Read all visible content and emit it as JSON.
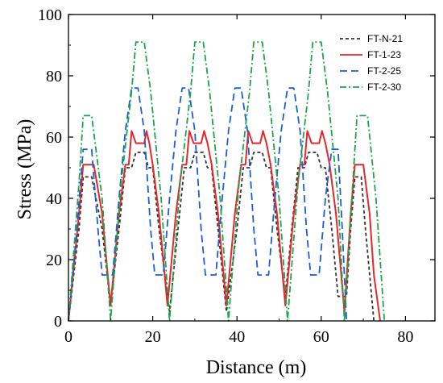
{
  "chart_data": {
    "type": "line",
    "xlabel": "Distance (m)",
    "ylabel": "Stress (MPa)",
    "xlim": [
      0,
      87
    ],
    "ylim": [
      0,
      100
    ],
    "xticks": [
      0,
      20,
      40,
      60,
      80
    ],
    "yticks": [
      0,
      20,
      40,
      60,
      80,
      100
    ],
    "legend_position": "top-right",
    "grid": false,
    "series": [
      {
        "name": "FT-N-21",
        "color": "#333333",
        "dash": "4,3",
        "points": [
          [
            0,
            0
          ],
          [
            2.5,
            30
          ],
          [
            3.5,
            47
          ],
          [
            5.5,
            47
          ],
          [
            8,
            30
          ],
          [
            10,
            5
          ],
          [
            12,
            30
          ],
          [
            13.5,
            50
          ],
          [
            15,
            50
          ],
          [
            16,
            55
          ],
          [
            18,
            55
          ],
          [
            19,
            50
          ],
          [
            20,
            50
          ],
          [
            21.5,
            30
          ],
          [
            24,
            3
          ],
          [
            26,
            30
          ],
          [
            27.5,
            50
          ],
          [
            29,
            50
          ],
          [
            30,
            55
          ],
          [
            32,
            55
          ],
          [
            33,
            50
          ],
          [
            34,
            50
          ],
          [
            35.5,
            30
          ],
          [
            37.5,
            3
          ],
          [
            40,
            30
          ],
          [
            41.5,
            50
          ],
          [
            43,
            50
          ],
          [
            44,
            55
          ],
          [
            46,
            55
          ],
          [
            47,
            50
          ],
          [
            48,
            50
          ],
          [
            49.5,
            30
          ],
          [
            51.5,
            8
          ],
          [
            53,
            30
          ],
          [
            54.5,
            50
          ],
          [
            56,
            50
          ],
          [
            57,
            55
          ],
          [
            59,
            55
          ],
          [
            60,
            50
          ],
          [
            61,
            50
          ],
          [
            62.5,
            30
          ],
          [
            64,
            8
          ],
          [
            66,
            8
          ],
          [
            67,
            30
          ],
          [
            68,
            47
          ],
          [
            69.5,
            47
          ],
          [
            70.5,
            30
          ],
          [
            72.5,
            0
          ]
        ]
      },
      {
        "name": "FT-1-23",
        "color": "#e8262a",
        "dash": "",
        "points": [
          [
            0,
            0
          ],
          [
            2.5,
            35
          ],
          [
            3.5,
            51
          ],
          [
            6,
            51
          ],
          [
            8,
            35
          ],
          [
            10,
            5
          ],
          [
            12,
            35
          ],
          [
            13.5,
            51
          ],
          [
            14.3,
            51
          ],
          [
            15,
            62
          ],
          [
            16,
            58
          ],
          [
            18,
            58
          ],
          [
            18.5,
            62
          ],
          [
            19.2,
            58
          ],
          [
            20,
            51
          ],
          [
            21.5,
            35
          ],
          [
            23.5,
            5
          ],
          [
            25.5,
            35
          ],
          [
            27,
            51
          ],
          [
            28,
            51
          ],
          [
            28.7,
            62
          ],
          [
            29.7,
            58
          ],
          [
            31.5,
            58
          ],
          [
            32.2,
            62
          ],
          [
            33,
            58
          ],
          [
            34,
            51
          ],
          [
            35.5,
            35
          ],
          [
            37.5,
            5
          ],
          [
            39.5,
            35
          ],
          [
            41,
            51
          ],
          [
            42,
            51
          ],
          [
            42.7,
            62
          ],
          [
            43.7,
            58
          ],
          [
            45.5,
            58
          ],
          [
            46.2,
            62
          ],
          [
            47,
            58
          ],
          [
            48,
            51
          ],
          [
            49.5,
            35
          ],
          [
            51.5,
            5
          ],
          [
            53.5,
            35
          ],
          [
            55,
            51
          ],
          [
            56,
            51
          ],
          [
            56.7,
            62
          ],
          [
            57.7,
            58
          ],
          [
            59.5,
            58
          ],
          [
            60.2,
            62
          ],
          [
            61,
            58
          ],
          [
            62,
            51
          ],
          [
            63.5,
            35
          ],
          [
            65.5,
            3
          ],
          [
            67,
            35
          ],
          [
            68,
            51
          ],
          [
            70,
            51
          ],
          [
            71.5,
            35
          ],
          [
            72.5,
            15
          ],
          [
            74,
            0
          ]
        ]
      },
      {
        "name": "FT-2-25",
        "color": "#1a5fd6",
        "dash": "9,5",
        "points": [
          [
            0,
            0
          ],
          [
            2,
            30
          ],
          [
            3.5,
            56
          ],
          [
            5.5,
            56
          ],
          [
            7,
            30
          ],
          [
            8,
            15
          ],
          [
            10.5,
            15
          ],
          [
            12,
            40
          ],
          [
            13.5,
            62
          ],
          [
            15,
            76
          ],
          [
            16.5,
            76
          ],
          [
            18,
            62
          ],
          [
            19.5,
            30
          ],
          [
            20.5,
            15
          ],
          [
            22.5,
            15
          ],
          [
            24,
            40
          ],
          [
            25.5,
            62
          ],
          [
            27,
            76
          ],
          [
            28.5,
            76
          ],
          [
            30,
            62
          ],
          [
            31.5,
            30
          ],
          [
            32.5,
            15
          ],
          [
            35,
            15
          ],
          [
            36.5,
            40
          ],
          [
            38,
            62
          ],
          [
            39.5,
            76
          ],
          [
            41,
            76
          ],
          [
            42.5,
            62
          ],
          [
            44,
            30
          ],
          [
            45,
            15
          ],
          [
            47.5,
            15
          ],
          [
            49,
            40
          ],
          [
            50.5,
            62
          ],
          [
            52,
            76
          ],
          [
            53.5,
            76
          ],
          [
            55,
            62
          ],
          [
            56.5,
            30
          ],
          [
            57.5,
            15
          ],
          [
            59.5,
            15
          ],
          [
            61,
            40
          ],
          [
            62.5,
            56
          ],
          [
            64,
            56
          ],
          [
            65,
            30
          ],
          [
            66,
            0
          ]
        ]
      },
      {
        "name": "FT-2-30",
        "color": "#1aa64a",
        "dash": "8,3,2,3",
        "points": [
          [
            0,
            0
          ],
          [
            2.5,
            45
          ],
          [
            3.5,
            67
          ],
          [
            5.5,
            67
          ],
          [
            8,
            40
          ],
          [
            10,
            0
          ],
          [
            12.5,
            45
          ],
          [
            15,
            75
          ],
          [
            16,
            91
          ],
          [
            18,
            91
          ],
          [
            19.5,
            75
          ],
          [
            22,
            40
          ],
          [
            24,
            0
          ],
          [
            26.5,
            45
          ],
          [
            29,
            75
          ],
          [
            30,
            91
          ],
          [
            32,
            91
          ],
          [
            33.5,
            75
          ],
          [
            36,
            40
          ],
          [
            38,
            0
          ],
          [
            40.5,
            45
          ],
          [
            43,
            75
          ],
          [
            44,
            91
          ],
          [
            46,
            91
          ],
          [
            47.5,
            75
          ],
          [
            50,
            40
          ],
          [
            52,
            0
          ],
          [
            54.5,
            45
          ],
          [
            57,
            75
          ],
          [
            58,
            91
          ],
          [
            60,
            91
          ],
          [
            61.5,
            75
          ],
          [
            64,
            40
          ],
          [
            65.5,
            0
          ],
          [
            67.5,
            45
          ],
          [
            68.5,
            67
          ],
          [
            71,
            67
          ],
          [
            73,
            40
          ],
          [
            75,
            0
          ]
        ]
      }
    ]
  }
}
